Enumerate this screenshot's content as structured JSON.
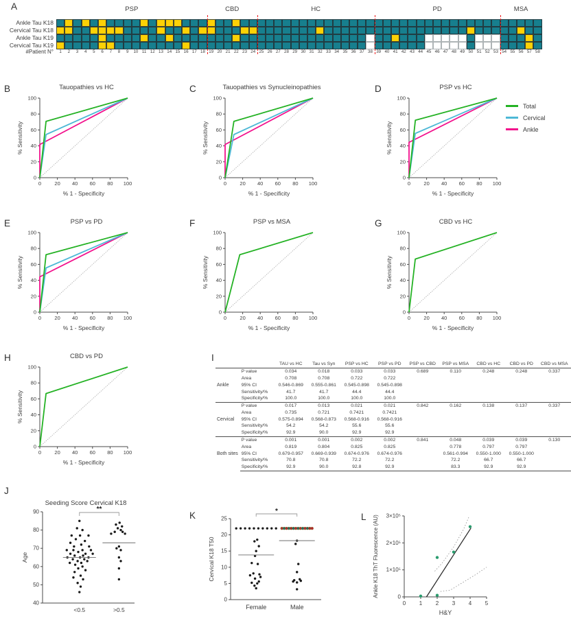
{
  "panel_letters": {
    "A": "A",
    "B": "B",
    "C": "C",
    "D": "D",
    "E": "E",
    "F": "F",
    "G": "G",
    "H": "H",
    "I": "I",
    "J": "J",
    "K": "K",
    "L": "L"
  },
  "colors": {
    "teal_cell": "#177f8e",
    "yellow_cell": "#fdd106",
    "empty_cell": "#ffffff",
    "separator_red": "#ee1c1c",
    "total_green": "#24b224",
    "cervical_blue": "#4db8d6",
    "ankle_pink": "#f2108c",
    "diagonal_gray": "#ababab",
    "scatter_black": "#1a1a1a",
    "l_point_green": "#2a9c6e"
  },
  "panelA": {
    "row_labels": [
      "Ankle Tau K18",
      "Cervical Tau K18",
      "Ankle Tau K19",
      "Cervical Tau K19"
    ],
    "groups": [
      {
        "label": "PSP",
        "count": 18
      },
      {
        "label": "CBD",
        "count": 6
      },
      {
        "label": "HC",
        "count": 14
      },
      {
        "label": "PD",
        "count": 15
      },
      {
        "label": "MSA",
        "count": 5
      }
    ],
    "patient_label": "#Patient N°",
    "patients": [
      1,
      2,
      3,
      4,
      5,
      6,
      7,
      8,
      9,
      10,
      11,
      12,
      13,
      14,
      15,
      16,
      17,
      18,
      19,
      20,
      21,
      22,
      23,
      24,
      25,
      26,
      27,
      28,
      29,
      30,
      31,
      32,
      33,
      34,
      35,
      36,
      37,
      38,
      39,
      40,
      41,
      42,
      43,
      44,
      45,
      46,
      47,
      48,
      49,
      50,
      51,
      52,
      53,
      54,
      55,
      56,
      57,
      58
    ],
    "cell_legend": {
      "T": "teal (positive)",
      "Y": "yellow",
      "W": "not tested"
    },
    "rows": [
      "TYTYTYTTTTYTYYYTTTYTTYTTTTTTTTTTTTTTTTTTTTTTTTTTTTTTTTTTTT",
      "YYTTYYYYTTTTYTTYTYYTTTYYTTTTTTTYTTTTTTTTTTTTTTTTTYTTTTTYTT",
      "TTTTTYTTTTYTTYTTTTTTTYTTTTTTTTTTTTTTTWTTYTTTWWWWWTWWWTTTYT",
      "YTTTTYYTTTTTTTTYTTTTTTTTTTTTTTTTTTTTTWTTTTTTWWWWWTWWWTTTYT"
    ]
  },
  "roc": {
    "x_label": "% 1 - Specificity",
    "y_label": "% Sensitivity",
    "ticks": [
      0,
      20,
      40,
      60,
      80,
      100
    ],
    "panels": [
      {
        "id": "B",
        "title": "Tauopathies vs HC",
        "curves": {
          "total": [
            [
              0,
              0
            ],
            [
              7.1,
              70.8
            ],
            [
              100,
              100
            ]
          ],
          "cervical": [
            [
              0,
              0
            ],
            [
              7.1,
              54.2
            ],
            [
              100,
              100
            ]
          ],
          "ankle": [
            [
              0,
              0
            ],
            [
              0,
              41.7
            ],
            [
              100,
              100
            ]
          ]
        }
      },
      {
        "id": "C",
        "title": "Tauopathies vs Synucleinopathies",
        "curves": {
          "total": [
            [
              0,
              0
            ],
            [
              10,
              70.8
            ],
            [
              100,
              100
            ]
          ],
          "cervical": [
            [
              0,
              0
            ],
            [
              10,
              54.2
            ],
            [
              100,
              100
            ]
          ],
          "ankle": [
            [
              0,
              0
            ],
            [
              0,
              41.7
            ],
            [
              100,
              100
            ]
          ]
        }
      },
      {
        "id": "D",
        "title": "PSP vs HC",
        "curves": {
          "total": [
            [
              0,
              0
            ],
            [
              7.2,
              72.2
            ],
            [
              100,
              100
            ]
          ],
          "cervical": [
            [
              0,
              0
            ],
            [
              7.1,
              55.6
            ],
            [
              100,
              100
            ]
          ],
          "ankle": [
            [
              0,
              0
            ],
            [
              0,
              44.4
            ],
            [
              100,
              100
            ]
          ]
        }
      },
      {
        "id": "E",
        "title": "PSP vs PD",
        "curves": {
          "total": [
            [
              0,
              0
            ],
            [
              7.1,
              72.2
            ],
            [
              100,
              100
            ]
          ],
          "cervical": [
            [
              0,
              0
            ],
            [
              7.1,
              55.6
            ],
            [
              100,
              100
            ]
          ],
          "ankle": [
            [
              0,
              0
            ],
            [
              0,
              44.4
            ],
            [
              100,
              100
            ]
          ]
        }
      },
      {
        "id": "F",
        "title": "PSP vs MSA",
        "curves": {
          "total": [
            [
              0,
              0
            ],
            [
              16.7,
              72.2
            ],
            [
              100,
              100
            ]
          ]
        }
      },
      {
        "id": "G",
        "title": "CBD vs HC",
        "curves": {
          "total": [
            [
              0,
              0
            ],
            [
              7.1,
              66.7
            ],
            [
              100,
              100
            ]
          ]
        }
      },
      {
        "id": "H",
        "title": "CBD vs PD",
        "curves": {
          "total": [
            [
              0,
              0
            ],
            [
              7.1,
              66.7
            ],
            [
              100,
              100
            ]
          ]
        }
      }
    ]
  },
  "legend": {
    "items": [
      {
        "label": "Total",
        "color_key": "total_green"
      },
      {
        "label": "Cervical",
        "color_key": "cervical_blue"
      },
      {
        "label": "Ankle",
        "color_key": "ankle_pink"
      }
    ]
  },
  "tableI": {
    "col_headers": [
      "TAU vs HC",
      "Tau vs Syn",
      "PSP vs HC",
      "PSP vs PD",
      "PSP vs CBD",
      "PSP vs MSA",
      "CBD vs HC",
      "CBD vs PD",
      "CBD vs MSA"
    ],
    "row_stats": [
      "P value",
      "Area",
      "95% CI",
      "Sensitivity/%",
      "Specificity/%"
    ],
    "groups": [
      {
        "label": "Ankle",
        "rows": [
          [
            "0.034",
            "0.018",
            "0.033",
            "0.033",
            "0.689",
            "0.110",
            "0.248",
            "0.248",
            "0.337"
          ],
          [
            "0.708",
            "0.708",
            "0.722",
            "0.722",
            "",
            "",
            "",
            "",
            ""
          ],
          [
            "0.546-0.869",
            "0.555-0.861",
            "0.545-0.898",
            "0.545-0.898",
            "",
            "",
            "",
            "",
            ""
          ],
          [
            "41.7",
            "41.7",
            "44.4",
            "44.4",
            "",
            "",
            "",
            "",
            ""
          ],
          [
            "100.0",
            "100.0",
            "100.0",
            "100.0",
            "",
            "",
            "",
            "",
            ""
          ]
        ]
      },
      {
        "label": "Cervical",
        "rows": [
          [
            "0.017",
            "0.013",
            "0.021",
            "0.021",
            "0.842",
            "0.162",
            "0.138",
            "0.137",
            "0.337"
          ],
          [
            "0.735",
            "0.721",
            "0.7421",
            "0.7421",
            "",
            "",
            "",
            "",
            ""
          ],
          [
            "0.575-0.894",
            "0.568-0.873",
            "0.568-0.916",
            "0.568-0.916",
            "",
            "",
            "",
            "",
            ""
          ],
          [
            "54.2",
            "54.2",
            "55.6",
            "55.6",
            "",
            "",
            "",
            "",
            ""
          ],
          [
            "92.9",
            "90.0",
            "92.9",
            "92.9",
            "",
            "",
            "",
            "",
            ""
          ]
        ]
      },
      {
        "label": "Both sites",
        "rows": [
          [
            "0.001",
            "0.001",
            "0.002",
            "0.002",
            "0.841",
            "0.048",
            "0.039",
            "0.039",
            "0.130"
          ],
          [
            "0.819",
            "0.804",
            "0.825",
            "0.825",
            "",
            "0.778",
            "0.797",
            "0.797",
            ""
          ],
          [
            "0.679-0.957",
            "0.669-0.939",
            "0.674-0.976",
            "0.674-0.976",
            "",
            "0.561-0.994",
            "0.550-1.000",
            "0.550-1.000",
            ""
          ],
          [
            "70.8",
            "70.8",
            "72.2",
            "72.2",
            "",
            "72.2",
            "66.7",
            "66.7",
            ""
          ],
          [
            "92.9",
            "90.0",
            "92.8",
            "92.9",
            "",
            "83.3",
            "92.9",
            "92.9",
            ""
          ]
        ]
      }
    ]
  },
  "panelJ": {
    "title": "Seeding Score Cervical K18",
    "y_label": "Age",
    "y_ticks": [
      40,
      50,
      60,
      70,
      80,
      90
    ],
    "y_range": [
      40,
      90
    ],
    "categories": [
      "<0.5",
      ">0.5"
    ],
    "significance": "**",
    "means": [
      65,
      73
    ],
    "groups": [
      [
        [
          0,
          85
        ],
        [
          -0.08,
          81
        ],
        [
          0.1,
          80
        ],
        [
          -0.26,
          77
        ],
        [
          0.02,
          77
        ],
        [
          0.3,
          77
        ],
        [
          -0.12,
          75
        ],
        [
          0.18,
          74
        ],
        [
          -0.3,
          73
        ],
        [
          0.06,
          72
        ],
        [
          -0.18,
          71
        ],
        [
          0.32,
          71
        ],
        [
          -0.42,
          69
        ],
        [
          -0.2,
          69
        ],
        [
          0.1,
          69
        ],
        [
          0.38,
          69
        ],
        [
          -0.04,
          68
        ],
        [
          -0.3,
          67
        ],
        [
          0.2,
          67
        ],
        [
          0.44,
          67
        ],
        [
          -0.16,
          66
        ],
        [
          0.12,
          66
        ],
        [
          -0.4,
          65
        ],
        [
          0.02,
          65
        ],
        [
          0.3,
          65
        ],
        [
          -0.22,
          64
        ],
        [
          0.16,
          64
        ],
        [
          -0.06,
          63
        ],
        [
          0.26,
          63
        ],
        [
          -0.32,
          62
        ],
        [
          0.06,
          62
        ],
        [
          -0.14,
          61
        ],
        [
          0.1,
          60
        ],
        [
          -0.04,
          59
        ],
        [
          0.2,
          58
        ],
        [
          -0.16,
          57
        ],
        [
          0.04,
          55
        ],
        [
          -0.2,
          54
        ],
        [
          0.12,
          53
        ],
        [
          -0.06,
          51
        ],
        [
          0.04,
          49
        ],
        [
          0,
          46
        ]
      ],
      [
        [
          0.02,
          84
        ],
        [
          -0.1,
          83
        ],
        [
          0.1,
          82
        ],
        [
          -0.04,
          81
        ],
        [
          0.06,
          80
        ],
        [
          -0.14,
          79
        ],
        [
          0.12,
          79
        ],
        [
          -0.26,
          78
        ],
        [
          0.2,
          78
        ],
        [
          0,
          71
        ],
        [
          -0.08,
          70
        ],
        [
          0.06,
          69
        ],
        [
          0,
          65
        ],
        [
          0.06,
          63
        ],
        [
          0,
          59
        ],
        [
          0,
          53
        ]
      ]
    ]
  },
  "panelK": {
    "y_label": "Cervical K18 T50",
    "y_ticks": [
      0,
      5,
      10,
      15,
      20,
      25
    ],
    "y_range": [
      0,
      25
    ],
    "categories": [
      "Female",
      "Male"
    ],
    "significance": "*",
    "means": [
      13.8,
      18.2
    ],
    "female_ceiling": {
      "y": 22,
      "count": 10
    },
    "male_ceiling": {
      "y": 22,
      "count": 14,
      "colors": [
        "#a8352f",
        "#1e6e62",
        "#b3282e",
        "#27695e",
        "#9c2d2a",
        "#1e6e62",
        "#b3282e",
        "#27695e",
        "#a8352f",
        "#1e6e62",
        "#b3282e",
        "#27695e",
        "#9c2d2a",
        "#b3282e"
      ]
    },
    "female_points": [
      [
        0.04,
        18.5
      ],
      [
        -0.06,
        18
      ],
      [
        0.1,
        16.5
      ],
      [
        0,
        15
      ],
      [
        -0.04,
        13.5
      ],
      [
        -0.16,
        11.3
      ],
      [
        0.06,
        11
      ],
      [
        -0.1,
        8.1
      ],
      [
        0.12,
        7.8
      ],
      [
        -0.22,
        7.5
      ],
      [
        0.16,
        7
      ],
      [
        -0.04,
        6.5
      ],
      [
        0.1,
        5.6
      ],
      [
        -0.16,
        5.2
      ],
      [
        0.04,
        5
      ],
      [
        -0.06,
        4.3
      ],
      [
        0,
        3.5
      ]
    ],
    "male_points": [
      [
        0,
        18.2
      ],
      [
        -0.05,
        17.2
      ],
      [
        0.05,
        11
      ],
      [
        0,
        8.5
      ],
      [
        0.1,
        6.3
      ],
      [
        -0.1,
        6
      ],
      [
        0.14,
        5.8
      ],
      [
        -0.14,
        5.6
      ],
      [
        0,
        5.3
      ],
      [
        0,
        3.2
      ]
    ]
  },
  "panelL": {
    "y_label": "Ankle K18 ThT Fluorescence (AU)",
    "x_label": "H&Y",
    "y_tick_labels": [
      "0",
      "1×10⁵",
      "2×10⁵",
      "3×10⁵"
    ],
    "y_tick_vals": [
      0,
      100000,
      200000,
      300000
    ],
    "y_range": [
      0,
      300000
    ],
    "x_ticks": [
      0,
      1,
      2,
      3,
      4,
      5
    ],
    "x_range": [
      0,
      5
    ],
    "points": [
      [
        1,
        3000
      ],
      [
        2,
        6000
      ],
      [
        2,
        146000
      ],
      [
        3,
        166000
      ],
      [
        4,
        260000
      ]
    ],
    "regression": [
      [
        1.35,
        0
      ],
      [
        4.05,
        255000
      ]
    ],
    "ci_upper": [
      [
        1.85,
        95000
      ],
      [
        2.3,
        125000
      ],
      [
        3.0,
        185000
      ],
      [
        3.6,
        250000
      ],
      [
        3.95,
        300000
      ]
    ],
    "ci_lower": [
      [
        2.2,
        20000
      ],
      [
        2.8,
        25000
      ],
      [
        3.6,
        55000
      ],
      [
        4.4,
        85000
      ],
      [
        5,
        110000
      ]
    ]
  }
}
